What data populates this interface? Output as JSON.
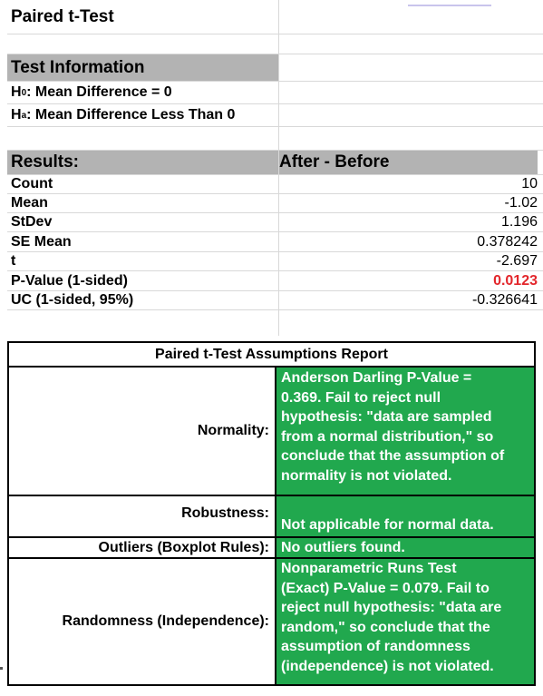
{
  "title": "Paired t-Test",
  "test_information": {
    "header": "Test Information",
    "h0_label": "H",
    "h0_sub": "0",
    "h0_text": ": Mean Difference = 0",
    "ha_label": "H",
    "ha_sub": "a",
    "ha_text": ": Mean Difference Less Than 0"
  },
  "results": {
    "header": "Results:",
    "column_header": "After - Before",
    "rows": [
      {
        "label": "Count",
        "value": "10"
      },
      {
        "label": "Mean",
        "value": "-1.02"
      },
      {
        "label": "StDev",
        "value": "1.196"
      },
      {
        "label": "SE Mean",
        "value": "0.378242"
      },
      {
        "label": "t",
        "value": "-2.697"
      },
      {
        "label": "P-Value (1-sided)",
        "value": "0.0123"
      },
      {
        "label": "UC (1-sided, 95%)",
        "value": "-0.326641"
      }
    ]
  },
  "report": {
    "title": "Paired t-Test Assumptions Report",
    "rows": [
      {
        "label": "Normality:",
        "lines": [
          "Anderson Darling P-Value =",
          "0.369.  Fail to reject null",
          "hypothesis: \"data are sampled",
          "from a normal distribution,\" so",
          "conclude that the assumption of",
          "normality is not violated."
        ]
      },
      {
        "label": "Robustness:",
        "lines": [
          "",
          "Not applicable for normal data."
        ]
      },
      {
        "label": "Outliers (Boxplot Rules):",
        "lines": [
          "No outliers found."
        ]
      },
      {
        "label": "Randomness (Independence):",
        "lines": [
          "Nonparametric Runs Test",
          "(Exact) P-Value = 0.079.  Fail to",
          "reject null hypothesis: \"data are",
          "random,\" so conclude that the",
          "assumption of randomness",
          "(independence) is not violated."
        ]
      }
    ]
  },
  "colors": {
    "pass_green": "#21a84e",
    "pvalue_red": "#e3262b",
    "section_gray": "#b3b3b3"
  }
}
